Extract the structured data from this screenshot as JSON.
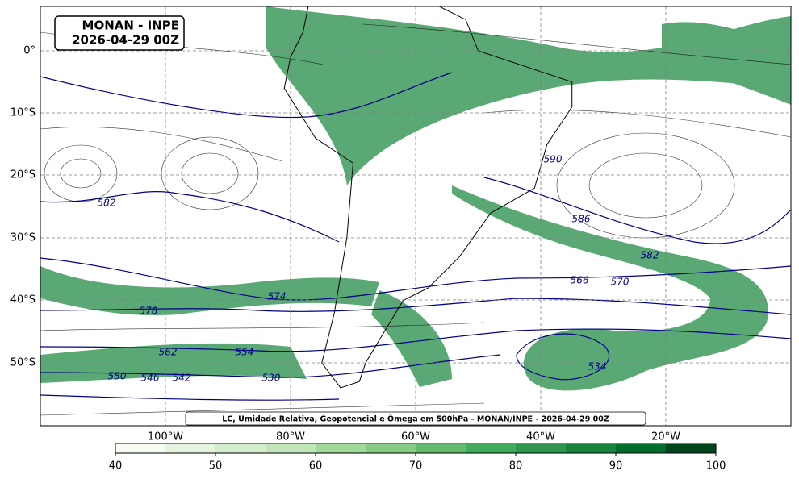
{
  "header": {
    "title": "MONAN - INPE",
    "date": "2026-04-29 00Z"
  },
  "caption": "LC, Umidade Relativa, Geopotencial e Ômega em 500hPa - MONAN/INPE - 2026-04-29 00Z",
  "lat_labels": [
    "0°",
    "10°S",
    "20°S",
    "30°S",
    "40°S",
    "50°S"
  ],
  "lon_labels": [
    "100°W",
    "80°W",
    "60°W",
    "40°W",
    "20°W"
  ],
  "contour_labels": [
    "590",
    "582",
    "586",
    "582",
    "566",
    "570",
    "574",
    "578",
    "562",
    "554",
    "550",
    "546",
    "542",
    "530",
    "534"
  ],
  "colorbar": {
    "lim": [
      40,
      100
    ],
    "ticks": [
      40,
      50,
      60,
      70,
      80,
      90,
      100
    ],
    "colors": [
      "#f7fcf5",
      "#e5f5e0",
      "#d3eecd",
      "#c0e6b9",
      "#a1d99b",
      "#86cc85",
      "#63bb6d",
      "#41ab5d",
      "#2e964d",
      "#19833e",
      "#006d2c",
      "#00441b"
    ]
  }
}
